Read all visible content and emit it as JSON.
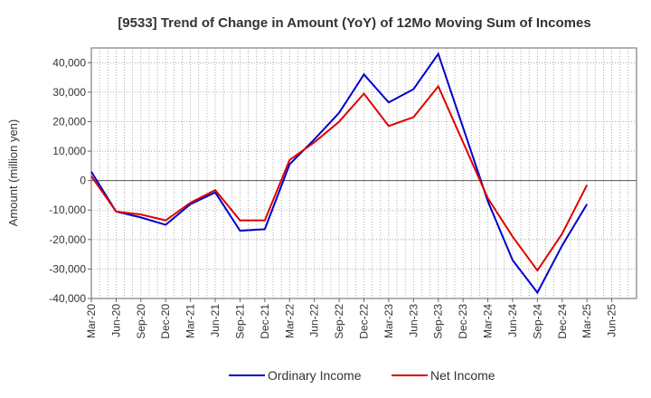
{
  "chart_data": {
    "type": "line",
    "title": "[9533]  Trend of Change in Amount (YoY) of 12Mo Moving Sum of Incomes",
    "xlabel": "",
    "ylabel": "Amount (million yen)",
    "ylim": [
      -40000,
      45000
    ],
    "yticks": [
      -40000,
      -30000,
      -20000,
      -10000,
      0,
      10000,
      20000,
      30000,
      40000
    ],
    "ytick_labels": [
      "-40,000",
      "-30,000",
      "-20,000",
      "-10,000",
      "0",
      "10,000",
      "20,000",
      "30,000",
      "40,000"
    ],
    "categories": [
      "Mar-20",
      "Jun-20",
      "Sep-20",
      "Dec-20",
      "Mar-21",
      "Jun-21",
      "Sep-21",
      "Dec-21",
      "Mar-22",
      "Jun-22",
      "Sep-22",
      "Dec-22",
      "Mar-23",
      "Jun-23",
      "Sep-23",
      "Dec-23",
      "Mar-24",
      "Jun-24",
      "Sep-24",
      "Dec-24",
      "Mar-25",
      "Jun-25"
    ],
    "grid": true,
    "legend_position": "bottom-center",
    "series": [
      {
        "name": "Ordinary Income",
        "color": "#0000cc",
        "values": [
          3000,
          -10500,
          -12500,
          -15000,
          -8000,
          -4000,
          -17000,
          -16500,
          5500,
          14000,
          23000,
          36000,
          26500,
          31000,
          43000,
          18000,
          -7000,
          -27000,
          -38000,
          -22000,
          -8000,
          null
        ]
      },
      {
        "name": "Net Income",
        "color": "#dd0000",
        "values": [
          1500,
          -10500,
          -11500,
          -13500,
          -7500,
          -3200,
          -13500,
          -13500,
          7000,
          13000,
          20000,
          29500,
          18500,
          21500,
          32000,
          13000,
          -6000,
          -19000,
          -30500,
          -18000,
          -1500,
          null
        ]
      }
    ]
  }
}
